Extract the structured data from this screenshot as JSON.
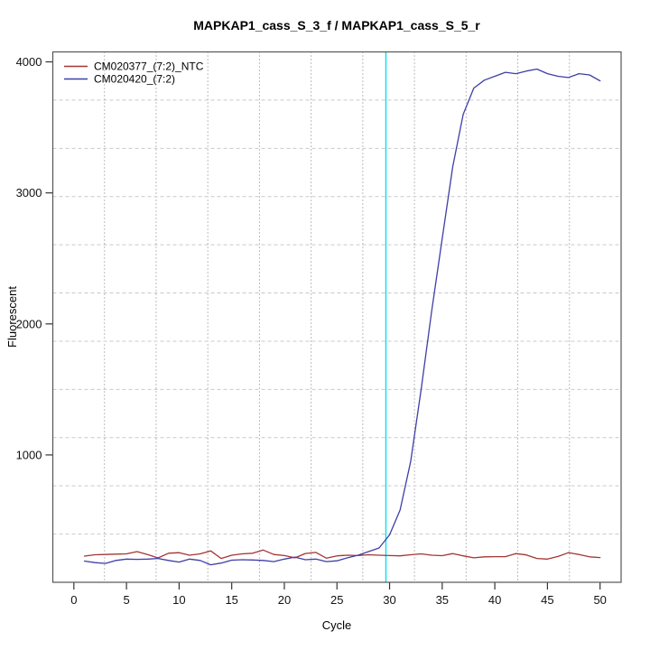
{
  "title": "MAPKAP1_cass_S_3_f / MAPKAP1_cass_S_5_r",
  "chart_data": {
    "type": "line",
    "title": "MAPKAP1_cass_S_3_f / MAPKAP1_cass_S_5_r",
    "xlabel": "Cycle",
    "ylabel": "Fluorescent",
    "xlim": [
      -2,
      52
    ],
    "ylim": [
      28,
      4076
    ],
    "x_ticks": [
      0,
      5,
      10,
      15,
      20,
      25,
      30,
      35,
      40,
      45,
      50
    ],
    "y_ticks": [
      1000,
      2000,
      3000,
      4000
    ],
    "grid": {
      "cells_x": 11,
      "cells_y": 11,
      "style_x": "dotted",
      "style_y": "dashed"
    },
    "legend_position": "top-left",
    "threshold_line": {
      "x": 29.65,
      "color": "#00e5ee",
      "orientation": "vertical"
    },
    "x": [
      1,
      2,
      3,
      4,
      5,
      6,
      7,
      8,
      9,
      10,
      11,
      12,
      13,
      14,
      15,
      16,
      17,
      18,
      19,
      20,
      21,
      22,
      23,
      24,
      25,
      26,
      27,
      28,
      29,
      30,
      31,
      32,
      33,
      34,
      35,
      36,
      37,
      38,
      39,
      40,
      41,
      42,
      43,
      44,
      45,
      46,
      47,
      48,
      49,
      50
    ],
    "series": [
      {
        "name": "CM020377_(7:2)_NTC",
        "color": "#a33535",
        "values": [
          228,
          238,
          240,
          243,
          245,
          262,
          240,
          214,
          250,
          254,
          235,
          245,
          268,
          210,
          235,
          245,
          250,
          274,
          240,
          232,
          215,
          248,
          256,
          212,
          230,
          235,
          232,
          238,
          235,
          232,
          230,
          238,
          245,
          235,
          231,
          247,
          230,
          215,
          222,
          224,
          224,
          247,
          237,
          210,
          205,
          225,
          254,
          240,
          222,
          217
        ]
      },
      {
        "name": "CM020420_(7:2)",
        "color": "#3e3ea8",
        "values": [
          190,
          178,
          172,
          195,
          205,
          203,
          205,
          210,
          195,
          182,
          205,
          195,
          162,
          175,
          197,
          200,
          198,
          195,
          186,
          205,
          220,
          200,
          205,
          186,
          192,
          215,
          235,
          262,
          290,
          390,
          580,
          950,
          1500,
          2100,
          2650,
          3200,
          3600,
          3800,
          3860,
          3890,
          3920,
          3910,
          3930,
          3945,
          3910,
          3890,
          3880,
          3910,
          3900,
          3855
        ]
      }
    ]
  },
  "colors": {
    "background": "#ffffff",
    "box": "#555555",
    "grid_vertical": "#7a7a7a",
    "grid_horizontal": "#c9c9c9",
    "tick": "#333333",
    "threshold": "#00e5ee"
  }
}
